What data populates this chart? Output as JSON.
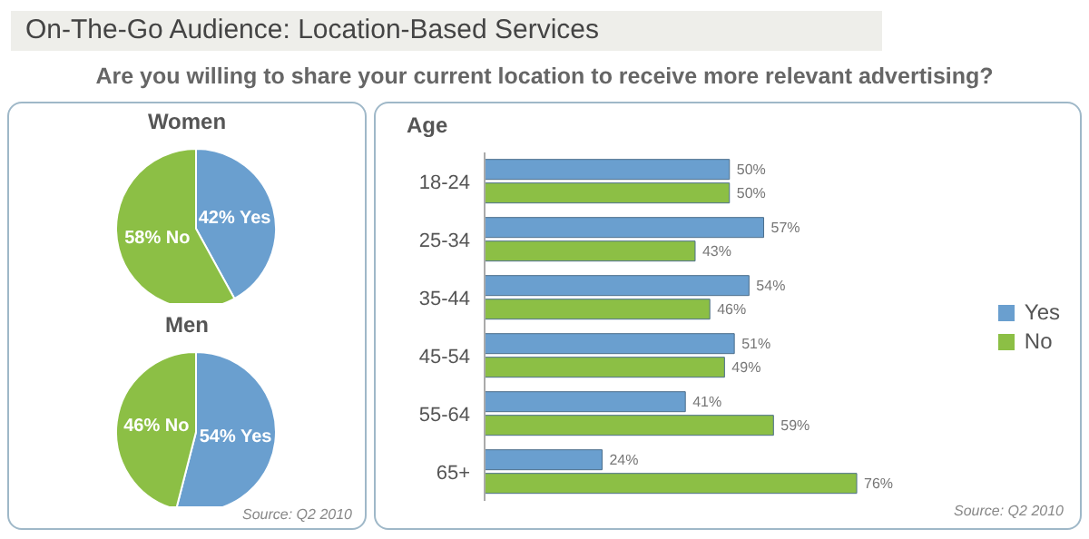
{
  "chart_data": [
    {
      "type": "other",
      "title": "On-The-Go Audience: Location-Based Services",
      "subtitle": "Are you willing to share your current location to receive more relevant advertising?"
    },
    {
      "type": "pie",
      "title": "Women",
      "categories": [
        "Yes",
        "No"
      ],
      "values": [
        42,
        58
      ],
      "colors": [
        "#6a9fcf",
        "#8cbf45"
      ],
      "value_labels": [
        "42%",
        "58%"
      ]
    },
    {
      "type": "pie",
      "title": "Men",
      "categories": [
        "Yes",
        "No"
      ],
      "values": [
        54,
        46
      ],
      "colors": [
        "#6a9fcf",
        "#8cbf45"
      ],
      "value_labels": [
        "54%",
        "46%"
      ],
      "annotations": [
        "Source: Q2 2010"
      ]
    },
    {
      "type": "bar",
      "orientation": "horizontal",
      "ylabel": "Age",
      "categories": [
        "18-24",
        "25-34",
        "35-44",
        "45-54",
        "55-64",
        "65+"
      ],
      "legend": "right",
      "series": [
        {
          "name": "Yes",
          "color": "#6a9fcf",
          "values": [
            50,
            57,
            54,
            51,
            41,
            24
          ],
          "value_labels": [
            "50%",
            "57%",
            "54%",
            "51%",
            "41%",
            "24%"
          ]
        },
        {
          "name": "No",
          "color": "#8cbf45",
          "values": [
            50,
            43,
            46,
            49,
            59,
            76
          ],
          "value_labels": [
            "50%",
            "43%",
            "46%",
            "49%",
            "59%",
            "76%"
          ]
        }
      ],
      "annotations": [
        "Source: Q2 2010"
      ]
    }
  ]
}
